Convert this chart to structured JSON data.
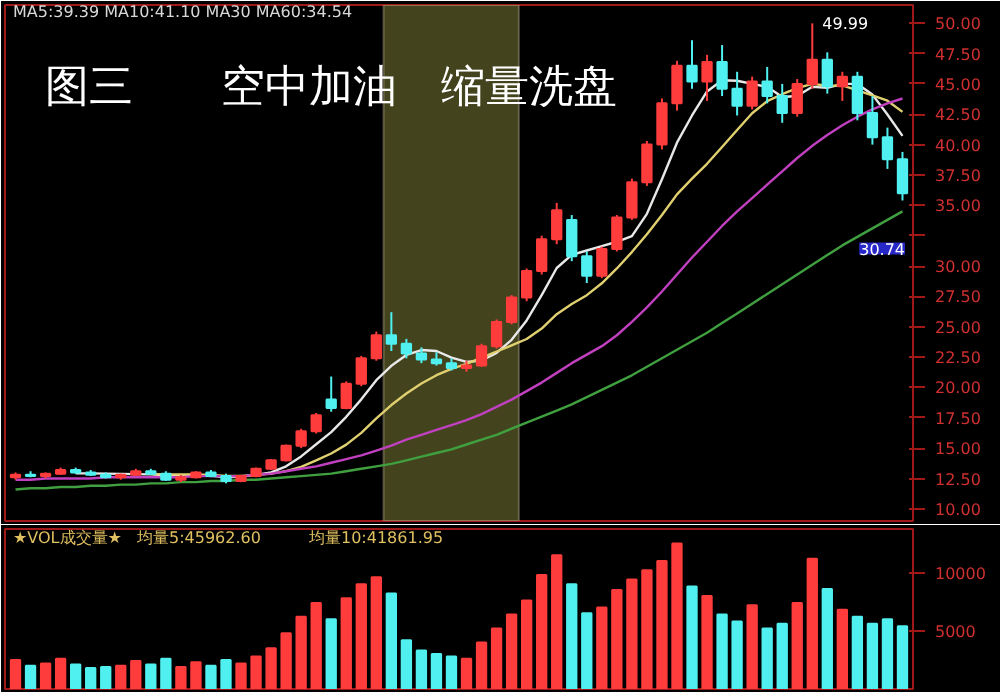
{
  "chart_data": [
    {
      "type": "candlestick",
      "title": "图三　　空中加油　缩量洗盘",
      "categories": [
        null,
        null,
        null,
        null,
        null,
        null,
        null,
        null,
        null,
        null,
        null,
        null,
        null,
        null,
        null,
        null,
        null,
        null,
        null,
        null,
        null,
        null,
        null,
        null,
        null,
        null,
        null,
        null,
        null,
        null,
        null,
        null,
        null,
        null,
        null,
        null,
        null,
        null,
        null,
        null,
        null,
        null,
        null,
        null,
        null,
        null,
        null,
        null,
        null,
        null,
        null,
        null,
        null,
        null,
        null,
        null,
        null,
        null,
        null,
        null
      ],
      "ohlc": [
        [
          12.6,
          13.0,
          12.4,
          12.8
        ],
        [
          12.8,
          13.1,
          12.6,
          12.7
        ],
        [
          12.7,
          13.0,
          12.5,
          12.9
        ],
        [
          12.9,
          13.4,
          12.8,
          13.2
        ],
        [
          13.2,
          13.4,
          12.9,
          13.0
        ],
        [
          13.0,
          13.2,
          12.7,
          12.8
        ],
        [
          12.8,
          13.0,
          12.5,
          12.6
        ],
        [
          12.6,
          12.9,
          12.4,
          12.8
        ],
        [
          12.8,
          13.3,
          12.7,
          13.1
        ],
        [
          13.1,
          13.3,
          12.8,
          12.9
        ],
        [
          12.9,
          13.1,
          12.3,
          12.4
        ],
        [
          12.4,
          12.8,
          12.2,
          12.6
        ],
        [
          12.6,
          13.1,
          12.5,
          13.0
        ],
        [
          13.0,
          13.2,
          12.6,
          12.7
        ],
        [
          12.7,
          12.9,
          12.1,
          12.3
        ],
        [
          12.3,
          12.8,
          12.2,
          12.7
        ],
        [
          12.7,
          13.4,
          12.6,
          13.3
        ],
        [
          13.3,
          14.1,
          13.2,
          14.0
        ],
        [
          14.0,
          15.3,
          13.9,
          15.2
        ],
        [
          15.2,
          16.6,
          15.0,
          16.4
        ],
        [
          16.4,
          17.9,
          16.2,
          17.7
        ],
        [
          19.0,
          20.9,
          18.0,
          18.3
        ],
        [
          18.3,
          20.5,
          18.2,
          20.3
        ],
        [
          20.3,
          22.6,
          20.1,
          22.4
        ],
        [
          22.4,
          24.6,
          22.2,
          24.3
        ],
        [
          24.3,
          26.2,
          23.0,
          23.6
        ],
        [
          23.6,
          24.0,
          22.4,
          22.8
        ],
        [
          22.8,
          23.3,
          22.0,
          22.3
        ],
        [
          22.3,
          22.9,
          21.8,
          22.0
        ],
        [
          22.0,
          22.4,
          21.4,
          21.6
        ],
        [
          21.6,
          22.2,
          21.3,
          21.8
        ],
        [
          21.8,
          23.6,
          21.7,
          23.4
        ],
        [
          23.4,
          25.6,
          23.2,
          25.4
        ],
        [
          25.4,
          27.6,
          25.2,
          27.4
        ],
        [
          27.4,
          29.8,
          27.1,
          29.6
        ],
        [
          29.6,
          32.5,
          29.3,
          32.2
        ],
        [
          32.2,
          35.2,
          31.8,
          34.6
        ],
        [
          33.8,
          34.2,
          30.4,
          30.8
        ],
        [
          30.8,
          31.2,
          28.6,
          29.2
        ],
        [
          29.2,
          31.6,
          29.0,
          31.4
        ],
        [
          31.4,
          34.2,
          31.2,
          34.0
        ],
        [
          34.0,
          37.2,
          33.8,
          36.9
        ],
        [
          36.9,
          40.3,
          36.6,
          40.0
        ],
        [
          40.0,
          43.8,
          39.6,
          43.4
        ],
        [
          43.4,
          46.9,
          42.8,
          46.5
        ],
        [
          46.5,
          48.6,
          44.6,
          45.2
        ],
        [
          45.2,
          47.4,
          43.6,
          46.8
        ],
        [
          46.8,
          48.2,
          44.0,
          44.6
        ],
        [
          44.6,
          46.0,
          42.4,
          43.2
        ],
        [
          43.2,
          45.6,
          42.9,
          45.2
        ],
        [
          45.2,
          46.4,
          43.4,
          44.0
        ],
        [
          44.0,
          45.0,
          41.8,
          42.6
        ],
        [
          42.6,
          45.4,
          42.3,
          45.0
        ],
        [
          45.0,
          49.99,
          44.6,
          47.0
        ],
        [
          47.0,
          47.6,
          44.2,
          44.8
        ],
        [
          44.8,
          46.0,
          43.6,
          45.6
        ],
        [
          45.6,
          46.0,
          42.0,
          42.6
        ],
        [
          42.6,
          44.0,
          40.0,
          40.6
        ],
        [
          40.6,
          41.4,
          38.0,
          38.8
        ],
        [
          38.8,
          39.4,
          35.4,
          36.0
        ]
      ],
      "colors": [
        "#ff3c3c",
        "#50f0f0",
        "#ff3c3c",
        "#ff3c3c",
        "#50f0f0",
        "#50f0f0",
        "#50f0f0",
        "#ff3c3c",
        "#ff3c3c",
        "#50f0f0",
        "#50f0f0",
        "#ff3c3c",
        "#ff3c3c",
        "#50f0f0",
        "#50f0f0",
        "#ff3c3c",
        "#ff3c3c",
        "#ff3c3c",
        "#ff3c3c",
        "#ff3c3c",
        "#ff3c3c",
        "#50f0f0",
        "#ff3c3c",
        "#ff3c3c",
        "#ff3c3c",
        "#50f0f0",
        "#50f0f0",
        "#50f0f0",
        "#50f0f0",
        "#50f0f0",
        "#ff3c3c",
        "#ff3c3c",
        "#ff3c3c",
        "#ff3c3c",
        "#ff3c3c",
        "#ff3c3c",
        "#ff3c3c",
        "#50f0f0",
        "#50f0f0",
        "#ff3c3c",
        "#ff3c3c",
        "#ff3c3c",
        "#ff3c3c",
        "#ff3c3c",
        "#ff3c3c",
        "#50f0f0",
        "#ff3c3c",
        "#50f0f0",
        "#50f0f0",
        "#ff3c3c",
        "#50f0f0",
        "#50f0f0",
        "#ff3c3c",
        "#ff3c3c",
        "#50f0f0",
        "#ff3c3c",
        "#50f0f0",
        "#50f0f0",
        "#50f0f0",
        "#50f0f0"
      ],
      "series": [
        {
          "type": "line",
          "color": "#e8e8e8",
          "values": [
            null,
            null,
            null,
            null,
            12.92,
            12.92,
            12.9,
            12.88,
            12.86,
            12.84,
            12.76,
            12.76,
            12.8,
            12.72,
            12.6,
            12.66,
            12.8,
            13.0,
            13.5,
            14.32,
            15.32,
            16.32,
            17.58,
            19.02,
            20.6,
            21.78,
            22.68,
            23.08,
            23.0,
            22.46,
            22.1,
            22.22,
            22.84,
            23.92,
            25.52,
            27.6,
            29.84,
            30.92,
            31.28,
            31.64,
            32.0,
            32.46,
            34.3,
            37.14,
            40.16,
            42.4,
            44.38,
            45.3,
            45.26,
            45.0,
            44.76,
            43.92,
            44.0,
            44.76,
            44.68,
            45.0,
            45.0,
            44.12,
            42.48,
            40.72
          ]
        },
        {
          "type": "line",
          "color": "#e0d070",
          "values": [
            null,
            null,
            null,
            null,
            null,
            null,
            null,
            null,
            null,
            12.88,
            12.84,
            12.83,
            12.84,
            12.79,
            12.72,
            12.71,
            12.78,
            12.9,
            13.11,
            13.46,
            13.99,
            14.56,
            15.29,
            16.26,
            17.46,
            18.55,
            19.5,
            20.33,
            21.01,
            21.53,
            21.94,
            22.45,
            22.96,
            23.46,
            23.99,
            24.85,
            26.03,
            26.88,
            27.6,
            28.58,
            29.8,
            31.15,
            32.61,
            34.21,
            35.9,
            37.2,
            38.42,
            39.8,
            41.2,
            42.58,
            43.58,
            44.15,
            44.65,
            45.01,
            44.84,
            44.88,
            44.46,
            44.06,
            43.62,
            42.7
          ]
        },
        {
          "type": "line",
          "color": "#c040c0",
          "values": [
            12.4,
            12.4,
            12.5,
            12.5,
            12.5,
            12.5,
            12.6,
            12.6,
            12.6,
            12.6,
            12.6,
            12.6,
            12.7,
            12.7,
            12.7,
            12.7,
            12.8,
            12.9,
            13.1,
            13.3,
            13.5,
            13.8,
            14.1,
            14.4,
            14.8,
            15.2,
            15.7,
            16.1,
            16.5,
            16.9,
            17.3,
            17.8,
            18.4,
            19.0,
            19.7,
            20.4,
            21.2,
            22.0,
            22.7,
            23.4,
            24.3,
            25.4,
            26.6,
            27.9,
            29.3,
            30.7,
            32.0,
            33.3,
            34.5,
            35.6,
            36.7,
            37.8,
            38.9,
            39.9,
            40.8,
            41.6,
            42.3,
            42.9,
            43.4,
            43.8
          ]
        },
        {
          "type": "line",
          "color": "#40a040",
          "values": [
            11.6,
            11.7,
            11.7,
            11.8,
            11.8,
            11.9,
            11.9,
            12.0,
            12.0,
            12.1,
            12.1,
            12.2,
            12.2,
            12.3,
            12.3,
            12.4,
            12.4,
            12.5,
            12.6,
            12.7,
            12.8,
            12.9,
            13.1,
            13.3,
            13.5,
            13.7,
            14.0,
            14.3,
            14.6,
            14.9,
            15.3,
            15.7,
            16.1,
            16.6,
            17.1,
            17.6,
            18.1,
            18.6,
            19.2,
            19.8,
            20.4,
            21.0,
            21.7,
            22.4,
            23.1,
            23.8,
            24.5,
            25.3,
            26.1,
            26.9,
            27.7,
            28.5,
            29.3,
            30.1,
            30.9,
            31.7,
            32.4,
            33.1,
            33.8,
            34.5
          ]
        }
      ],
      "ylim": [
        9.0,
        51.5
      ],
      "yticks": [
        {
          "value": 10,
          "label": "10.00"
        },
        {
          "value": 12.5,
          "label": "12.50"
        },
        {
          "value": 15,
          "label": "15.00"
        },
        {
          "value": 17.5,
          "label": "17.50"
        },
        {
          "value": 20,
          "label": "20.00"
        },
        {
          "value": 22.5,
          "label": "22.50"
        },
        {
          "value": 25,
          "label": "25.00"
        },
        {
          "value": 27.5,
          "label": "27.50"
        },
        {
          "value": 30,
          "label": "30.00"
        },
        {
          "value": 32.5,
          "label": null
        },
        {
          "value": 35,
          "label": "35.00"
        },
        {
          "value": 37.5,
          "label": "37.50"
        },
        {
          "value": 40,
          "label": "40.00"
        },
        {
          "value": 42.5,
          "label": "42.50"
        },
        {
          "value": 45,
          "label": "45.00"
        },
        {
          "value": 47.5,
          "label": "47.50"
        },
        {
          "value": 50,
          "label": "50.00"
        }
      ],
      "tick_labels": "y",
      "annotations": [
        "MA5:39.39  MA10:41.10  MA30  MA60:34.54",
        "49.99",
        "30.74"
      ]
    },
    {
      "type": "bar",
      "categories": [
        null,
        null,
        null,
        null,
        null,
        null,
        null,
        null,
        null,
        null,
        null,
        null,
        null,
        null,
        null,
        null,
        null,
        null,
        null,
        null,
        null,
        null,
        null,
        null,
        null,
        null,
        null,
        null,
        null,
        null,
        null,
        null,
        null,
        null,
        null,
        null,
        null,
        null,
        null,
        null,
        null,
        null,
        null,
        null,
        null,
        null,
        null,
        null,
        null,
        null,
        null,
        null,
        null,
        null,
        null,
        null,
        null,
        null,
        null,
        null
      ],
      "values": [
        2500,
        2000,
        2200,
        2600,
        2100,
        1800,
        1900,
        2000,
        2400,
        2100,
        2600,
        1900,
        2300,
        2000,
        2500,
        2200,
        2800,
        3500,
        4800,
        6200,
        7400,
        6000,
        7800,
        9000,
        9600,
        8200,
        4200,
        3300,
        3000,
        2800,
        2600,
        4000,
        5200,
        6400,
        7600,
        9800,
        11500,
        9000,
        6500,
        7000,
        8500,
        9400,
        10200,
        11000,
        12500,
        8800,
        8000,
        6400,
        5800,
        7200,
        5200,
        5600,
        7400,
        11200,
        8600,
        6800,
        6200,
        5600,
        6000,
        5400
      ],
      "colors": [
        "#ff3c3c",
        "#50f0f0",
        "#ff3c3c",
        "#ff3c3c",
        "#50f0f0",
        "#50f0f0",
        "#50f0f0",
        "#ff3c3c",
        "#ff3c3c",
        "#50f0f0",
        "#50f0f0",
        "#ff3c3c",
        "#ff3c3c",
        "#50f0f0",
        "#50f0f0",
        "#ff3c3c",
        "#ff3c3c",
        "#ff3c3c",
        "#ff3c3c",
        "#ff3c3c",
        "#ff3c3c",
        "#50f0f0",
        "#ff3c3c",
        "#ff3c3c",
        "#ff3c3c",
        "#50f0f0",
        "#50f0f0",
        "#50f0f0",
        "#50f0f0",
        "#50f0f0",
        "#ff3c3c",
        "#ff3c3c",
        "#ff3c3c",
        "#ff3c3c",
        "#ff3c3c",
        "#ff3c3c",
        "#ff3c3c",
        "#50f0f0",
        "#50f0f0",
        "#ff3c3c",
        "#ff3c3c",
        "#ff3c3c",
        "#ff3c3c",
        "#ff3c3c",
        "#ff3c3c",
        "#50f0f0",
        "#ff3c3c",
        "#50f0f0",
        "#50f0f0",
        "#ff3c3c",
        "#50f0f0",
        "#50f0f0",
        "#ff3c3c",
        "#ff3c3c",
        "#50f0f0",
        "#ff3c3c",
        "#50f0f0",
        "#50f0f0",
        "#50f0f0",
        "#50f0f0"
      ],
      "ylim": [
        0,
        13750
      ],
      "yticks": [
        5000,
        10000
      ],
      "tick_labels": "y",
      "annotations": [
        "★VOL成交量★",
        "均量5:45962.60",
        "均量10:41861.95"
      ]
    }
  ]
}
